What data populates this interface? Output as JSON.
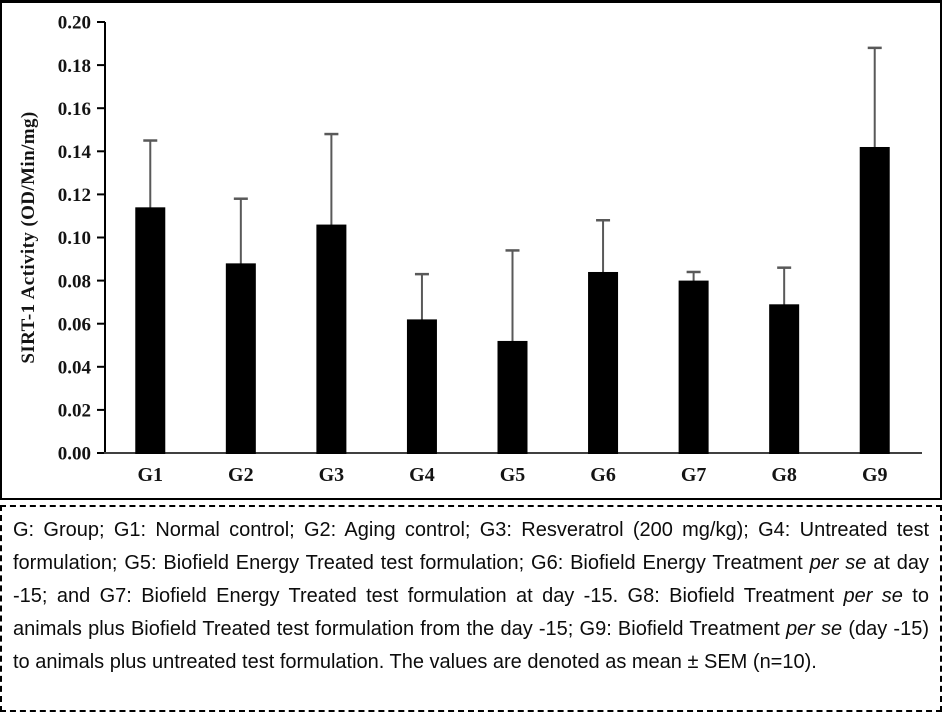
{
  "chart_data": {
    "type": "bar",
    "title": "",
    "xlabel": "",
    "ylabel": "SIRT-1 Activity (OD/Min/mg)",
    "categories": [
      "G1",
      "G2",
      "G3",
      "G4",
      "G5",
      "G6",
      "G7",
      "G8",
      "G9"
    ],
    "values": [
      0.114,
      0.088,
      0.106,
      0.062,
      0.052,
      0.084,
      0.08,
      0.069,
      0.142
    ],
    "error_sem": [
      0.031,
      0.03,
      0.042,
      0.021,
      0.042,
      0.024,
      0.004,
      0.017,
      0.046
    ],
    "ylim": [
      0,
      0.2
    ],
    "ytick_step": 0.02,
    "ytick_labels": [
      "0.00",
      "0.02",
      "0.04",
      "0.06",
      "0.08",
      "0.10",
      "0.12",
      "0.14",
      "0.16",
      "0.18",
      "0.20"
    ],
    "grid": false,
    "legend_position": "none",
    "bar_color": "#000000",
    "error_color": "#595959",
    "axis_color": "#000000",
    "xaxis_color": "#404040"
  },
  "caption": {
    "segments": [
      {
        "text": "G: Group; G1: Normal control; G2:  Aging control; G3: Resveratrol (200 mg/kg); G4: Untreated test formulation; G5: Biofield Energy Treated test formulation; G6: Biofield Energy Treatment ",
        "italic": false
      },
      {
        "text": "per se",
        "italic": true
      },
      {
        "text": " at day -15; and G7: Biofield Energy Treated test formulation at day -15. G8: Biofield Treatment ",
        "italic": false
      },
      {
        "text": "per se",
        "italic": true
      },
      {
        "text": " to animals plus Biofield Treated test formulation from the day -15; G9: Biofield Treatment ",
        "italic": false
      },
      {
        "text": "per se",
        "italic": true
      },
      {
        "text": " (day -15) to animals plus untreated test formulation. The values are denoted as mean ± SEM (n=10).",
        "italic": false
      }
    ]
  }
}
